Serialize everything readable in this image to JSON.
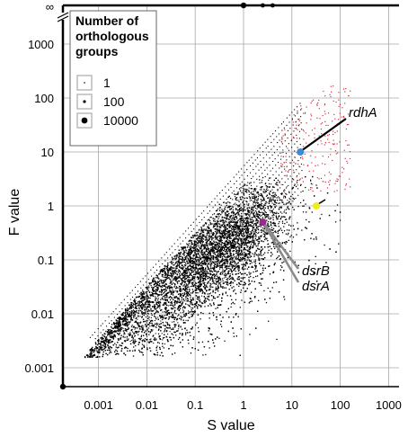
{
  "chart_data": {
    "type": "scatter",
    "title": "",
    "xlabel": "S value",
    "ylabel": "F value",
    "x_scale": "log",
    "y_scale": "log",
    "xlim": [
      0.0002,
      2000
    ],
    "ylim": [
      0.0002,
      10000
    ],
    "x_ticks": [
      {
        "value": 0.001,
        "label": "0.001"
      },
      {
        "value": 0.01,
        "label": "0.01"
      },
      {
        "value": 0.1,
        "label": "0.1"
      },
      {
        "value": 1,
        "label": "1"
      },
      {
        "value": 10,
        "label": "10"
      },
      {
        "value": 100,
        "label": "100"
      },
      {
        "value": 1000,
        "label": "1000"
      }
    ],
    "y_ticks": [
      {
        "value": 0.001,
        "label": "0.001"
      },
      {
        "value": 0.01,
        "label": "0.01"
      },
      {
        "value": 0.1,
        "label": "0.1"
      },
      {
        "value": 1,
        "label": "1"
      },
      {
        "value": 10,
        "label": "10"
      },
      {
        "value": 100,
        "label": "100"
      },
      {
        "value": 1000,
        "label": "1000"
      }
    ],
    "y_infinity_label": "∞",
    "grid": true,
    "legend": {
      "title_lines": [
        "Number of",
        "orthologous",
        "groups"
      ],
      "placement": "top-left",
      "entries": [
        {
          "label": "1",
          "marker_radius": 0.8
        },
        {
          "label": "100",
          "marker_radius": 1.6
        },
        {
          "label": "10000",
          "marker_radius": 3.4
        }
      ]
    },
    "colors": {
      "bulk": "#000000",
      "outlier": "#d62f3c",
      "rdhA": "#3b8bd9",
      "dsr": "#9b2a8f",
      "other": "#f2ea1d",
      "grid": "#a6a6a6"
    },
    "highlights": [
      {
        "label": "rdhA",
        "x": 15,
        "y": 10,
        "color": "#3b8bd9"
      },
      {
        "label": "dsrB",
        "x": 2.5,
        "y": 0.5,
        "color": "#9b2a8f"
      },
      {
        "label": "dsrA",
        "x": 2.5,
        "y": 0.5,
        "color": "#9b2a8f"
      },
      {
        "label": "",
        "x": 32,
        "y": 1.0,
        "color": "#f2ea1d"
      }
    ],
    "series": [
      {
        "points_estimated": 20000,
        "x_range": [
          0.0003,
          100
        ],
        "y_range": [
          0.003,
          3
        ],
        "color": "#000000"
      },
      {
        "points_estimated": 300,
        "x_range": [
          5,
          150
        ],
        "y_range": [
          1.5,
          200
        ],
        "color": "#d62f3c"
      }
    ],
    "infinite_F_points": [
      {
        "x": 1,
        "y": "∞"
      },
      {
        "x": 2.5,
        "y": "∞"
      },
      {
        "x": 4,
        "y": "∞"
      }
    ],
    "zero_point": {
      "x": 0,
      "y": 0
    }
  }
}
